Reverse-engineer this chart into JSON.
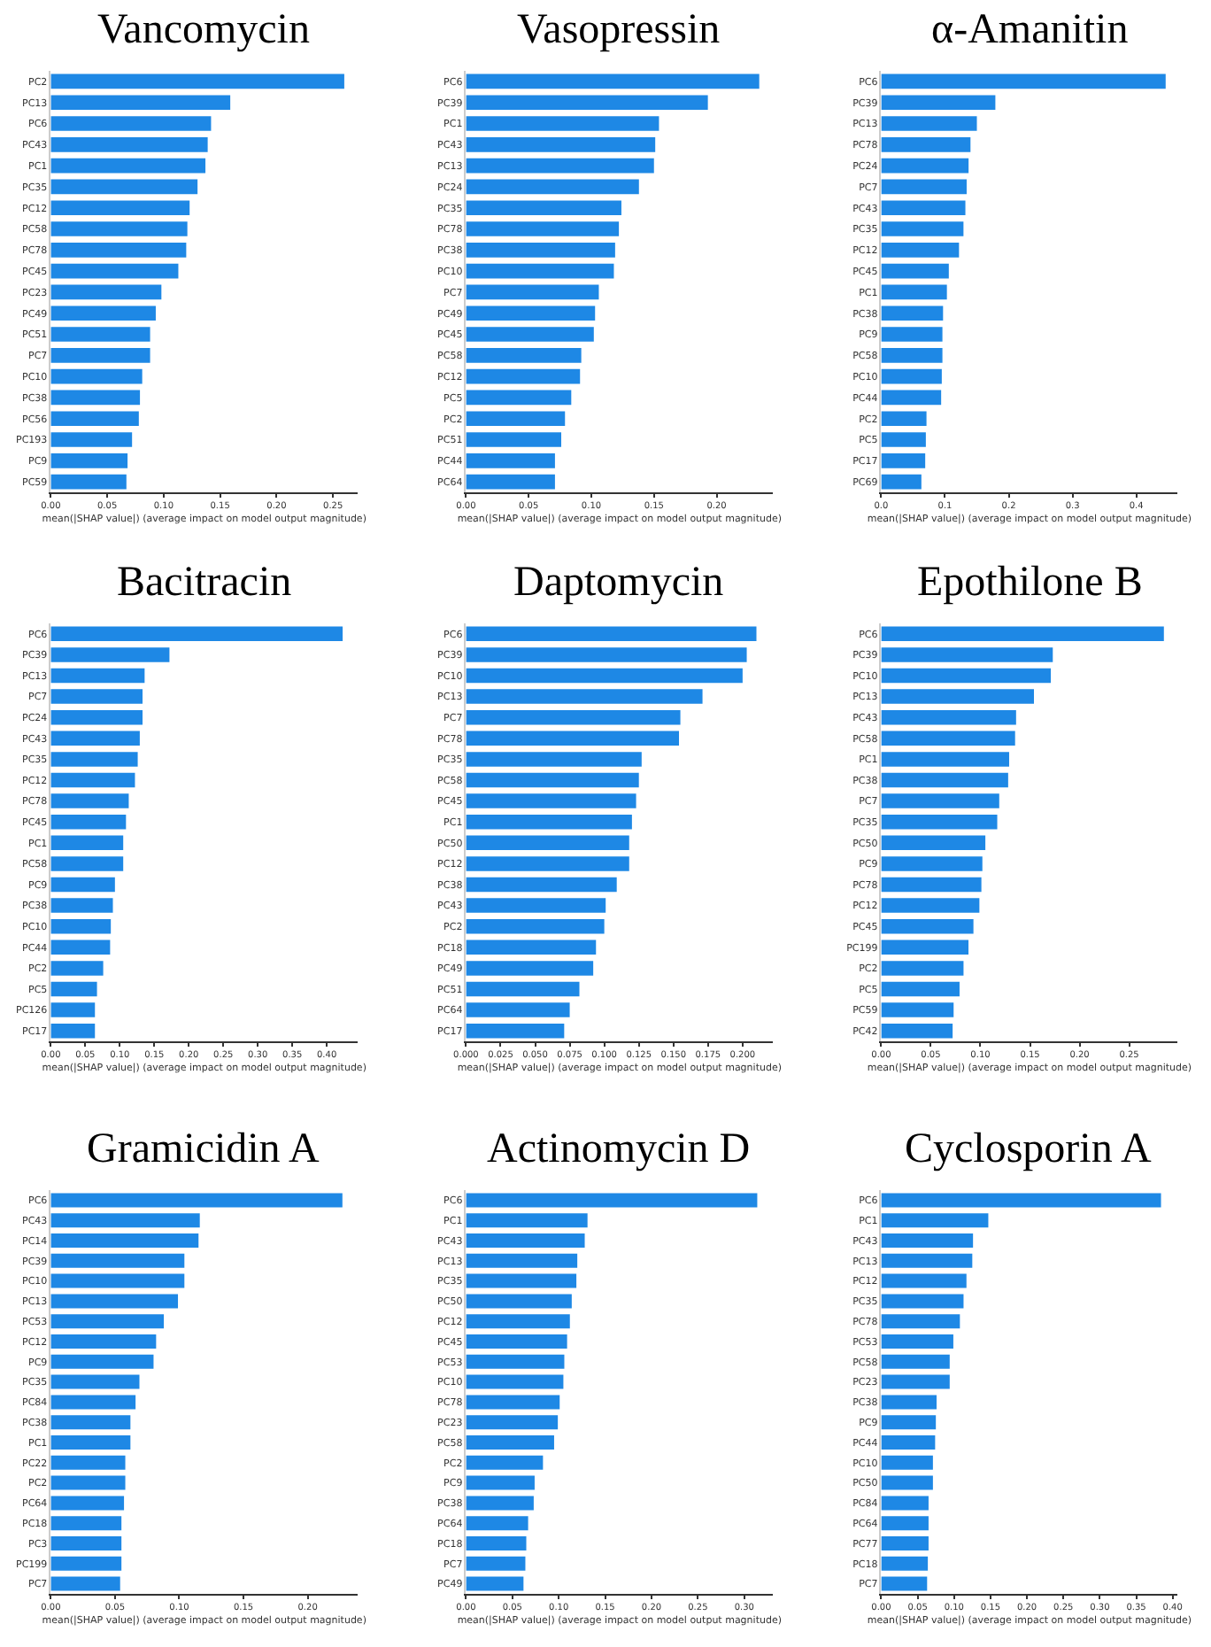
{
  "chart_data": [
    {
      "type": "bar",
      "orientation": "horizontal",
      "title": "Vancomycin",
      "xlabel": "mean(|SHAP value|) (average impact on model output magnitude)",
      "color": "#1e88e5",
      "categories": [
        "PC2",
        "PC13",
        "PC6",
        "PC43",
        "PC1",
        "PC35",
        "PC12",
        "PC58",
        "PC78",
        "PC45",
        "PC23",
        "PC49",
        "PC51",
        "PC7",
        "PC10",
        "PC38",
        "PC56",
        "PC193",
        "PC9",
        "PC59"
      ],
      "values": [
        0.26,
        0.159,
        0.142,
        0.139,
        0.137,
        0.13,
        0.123,
        0.121,
        0.12,
        0.113,
        0.098,
        0.093,
        0.088,
        0.088,
        0.081,
        0.079,
        0.078,
        0.072,
        0.068,
        0.067
      ],
      "xlim": [
        0,
        0.272
      ],
      "xticks": [
        {
          "value": 0,
          "label": "0.00"
        },
        {
          "value": 0.05,
          "label": "0.05"
        },
        {
          "value": 0.1,
          "label": "0.10"
        },
        {
          "value": 0.15,
          "label": "0.15"
        },
        {
          "value": 0.2,
          "label": "0.20"
        },
        {
          "value": 0.25,
          "label": "0.25"
        }
      ]
    },
    {
      "type": "bar",
      "orientation": "horizontal",
      "title": "Vasopressin",
      "xlabel": "mean(|SHAP value|) (average impact on model output magnitude)",
      "color": "#1e88e5",
      "categories": [
        "PC6",
        "PC39",
        "PC1",
        "PC43",
        "PC13",
        "PC24",
        "PC35",
        "PC78",
        "PC38",
        "PC10",
        "PC7",
        "PC49",
        "PC45",
        "PC58",
        "PC12",
        "PC5",
        "PC2",
        "PC51",
        "PC44",
        "PC64"
      ],
      "values": [
        0.234,
        0.193,
        0.154,
        0.151,
        0.15,
        0.138,
        0.124,
        0.122,
        0.119,
        0.118,
        0.106,
        0.103,
        0.102,
        0.092,
        0.091,
        0.084,
        0.079,
        0.076,
        0.071,
        0.071
      ],
      "xlim": [
        0,
        0.245
      ],
      "xticks": [
        {
          "value": 0,
          "label": "0.00"
        },
        {
          "value": 0.05,
          "label": "0.05"
        },
        {
          "value": 0.1,
          "label": "0.10"
        },
        {
          "value": 0.15,
          "label": "0.15"
        },
        {
          "value": 0.2,
          "label": "0.20"
        }
      ]
    },
    {
      "type": "bar",
      "orientation": "horizontal",
      "title": "α-Amanitin",
      "xlabel": "mean(|SHAP value|) (average impact on model output magnitude)",
      "color": "#1e88e5",
      "categories": [
        "PC6",
        "PC39",
        "PC13",
        "PC78",
        "PC24",
        "PC7",
        "PC43",
        "PC35",
        "PC12",
        "PC45",
        "PC1",
        "PC38",
        "PC9",
        "PC58",
        "PC10",
        "PC44",
        "PC2",
        "PC5",
        "PC17",
        "PC69"
      ],
      "values": [
        0.446,
        0.179,
        0.15,
        0.14,
        0.137,
        0.134,
        0.132,
        0.129,
        0.122,
        0.106,
        0.103,
        0.097,
        0.096,
        0.096,
        0.095,
        0.094,
        0.071,
        0.07,
        0.069,
        0.063
      ],
      "xlim": [
        0,
        0.465
      ],
      "xticks": [
        {
          "value": 0,
          "label": "0.0"
        },
        {
          "value": 0.1,
          "label": "0.1"
        },
        {
          "value": 0.2,
          "label": "0.2"
        },
        {
          "value": 0.3,
          "label": "0.3"
        },
        {
          "value": 0.4,
          "label": "0.4"
        }
      ]
    },
    {
      "type": "bar",
      "orientation": "horizontal",
      "title": "Bacitracin",
      "xlabel": "mean(|SHAP value|) (average impact on model output magnitude)",
      "color": "#1e88e5",
      "categories": [
        "PC6",
        "PC39",
        "PC13",
        "PC7",
        "PC24",
        "PC43",
        "PC35",
        "PC12",
        "PC78",
        "PC45",
        "PC1",
        "PC58",
        "PC9",
        "PC38",
        "PC10",
        "PC44",
        "PC2",
        "PC5",
        "PC126",
        "PC17"
      ],
      "values": [
        0.423,
        0.172,
        0.136,
        0.133,
        0.133,
        0.129,
        0.126,
        0.122,
        0.113,
        0.109,
        0.105,
        0.105,
        0.093,
        0.09,
        0.087,
        0.086,
        0.076,
        0.067,
        0.064,
        0.064
      ],
      "xlim": [
        0,
        0.445
      ],
      "xticks": [
        {
          "value": 0,
          "label": "0.00"
        },
        {
          "value": 0.05,
          "label": "0.05"
        },
        {
          "value": 0.1,
          "label": "0.10"
        },
        {
          "value": 0.15,
          "label": "0.15"
        },
        {
          "value": 0.2,
          "label": "0.20"
        },
        {
          "value": 0.25,
          "label": "0.25"
        },
        {
          "value": 0.3,
          "label": "0.30"
        },
        {
          "value": 0.35,
          "label": "0.35"
        },
        {
          "value": 0.4,
          "label": "0.40"
        }
      ]
    },
    {
      "type": "bar",
      "orientation": "horizontal",
      "title": "Daptomycin",
      "xlabel": "mean(|SHAP value|) (average impact on model output magnitude)",
      "color": "#1e88e5",
      "categories": [
        "PC6",
        "PC39",
        "PC10",
        "PC13",
        "PC7",
        "PC78",
        "PC35",
        "PC58",
        "PC45",
        "PC1",
        "PC50",
        "PC12",
        "PC38",
        "PC43",
        "PC2",
        "PC18",
        "PC49",
        "PC51",
        "PC64",
        "PC17"
      ],
      "values": [
        0.21,
        0.203,
        0.2,
        0.171,
        0.155,
        0.154,
        0.127,
        0.125,
        0.123,
        0.12,
        0.118,
        0.118,
        0.109,
        0.101,
        0.1,
        0.094,
        0.092,
        0.082,
        0.075,
        0.071
      ],
      "xlim": [
        0,
        0.222
      ],
      "xticks": [
        {
          "value": 0,
          "label": "0.000"
        },
        {
          "value": 0.025,
          "label": "0.025"
        },
        {
          "value": 0.05,
          "label": "0.050"
        },
        {
          "value": 0.075,
          "label": "0.075"
        },
        {
          "value": 0.1,
          "label": "0.100"
        },
        {
          "value": 0.125,
          "label": "0.125"
        },
        {
          "value": 0.15,
          "label": "0.150"
        },
        {
          "value": 0.175,
          "label": "0.175"
        },
        {
          "value": 0.2,
          "label": "0.200"
        }
      ]
    },
    {
      "type": "bar",
      "orientation": "horizontal",
      "title": "Epothilone B",
      "xlabel": "mean(|SHAP value|) (average impact on model output magnitude)",
      "color": "#1e88e5",
      "categories": [
        "PC6",
        "PC39",
        "PC10",
        "PC13",
        "PC43",
        "PC58",
        "PC1",
        "PC38",
        "PC7",
        "PC35",
        "PC50",
        "PC9",
        "PC78",
        "PC12",
        "PC45",
        "PC199",
        "PC2",
        "PC5",
        "PC59",
        "PC42"
      ],
      "values": [
        0.285,
        0.173,
        0.171,
        0.154,
        0.136,
        0.135,
        0.129,
        0.128,
        0.119,
        0.117,
        0.105,
        0.102,
        0.101,
        0.099,
        0.093,
        0.088,
        0.083,
        0.079,
        0.073,
        0.072
      ],
      "xlim": [
        0,
        0.299
      ],
      "xticks": [
        {
          "value": 0,
          "label": "0.00"
        },
        {
          "value": 0.05,
          "label": "0.05"
        },
        {
          "value": 0.1,
          "label": "0.10"
        },
        {
          "value": 0.15,
          "label": "0.15"
        },
        {
          "value": 0.2,
          "label": "0.20"
        },
        {
          "value": 0.25,
          "label": "0.25"
        }
      ]
    },
    {
      "type": "bar",
      "orientation": "horizontal",
      "title": "Gramicidin A",
      "xlabel": "mean(|SHAP value|) (average impact on model output magnitude)",
      "color": "#1e88e5",
      "categories": [
        "PC6",
        "PC43",
        "PC14",
        "PC39",
        "PC10",
        "PC13",
        "PC53",
        "PC12",
        "PC9",
        "PC35",
        "PC84",
        "PC38",
        "PC1",
        "PC22",
        "PC2",
        "PC64",
        "PC18",
        "PC3",
        "PC199",
        "PC7"
      ],
      "values": [
        0.227,
        0.116,
        0.115,
        0.104,
        0.104,
        0.099,
        0.088,
        0.082,
        0.08,
        0.069,
        0.066,
        0.062,
        0.062,
        0.058,
        0.058,
        0.057,
        0.055,
        0.055,
        0.055,
        0.054
      ],
      "xlim": [
        0,
        0.239
      ],
      "xticks": [
        {
          "value": 0,
          "label": "0.00"
        },
        {
          "value": 0.05,
          "label": "0.05"
        },
        {
          "value": 0.1,
          "label": "0.10"
        },
        {
          "value": 0.15,
          "label": "0.15"
        },
        {
          "value": 0.2,
          "label": "0.20"
        }
      ]
    },
    {
      "type": "bar",
      "orientation": "horizontal",
      "title": "Actinomycin D",
      "xlabel": "mean(|SHAP value|) (average impact on model output magnitude)",
      "color": "#1e88e5",
      "categories": [
        "PC6",
        "PC1",
        "PC43",
        "PC13",
        "PC35",
        "PC50",
        "PC12",
        "PC45",
        "PC53",
        "PC10",
        "PC78",
        "PC23",
        "PC58",
        "PC2",
        "PC9",
        "PC38",
        "PC64",
        "PC18",
        "PC7",
        "PC49"
      ],
      "values": [
        0.314,
        0.131,
        0.128,
        0.12,
        0.119,
        0.114,
        0.112,
        0.109,
        0.106,
        0.105,
        0.101,
        0.099,
        0.095,
        0.083,
        0.074,
        0.073,
        0.067,
        0.065,
        0.064,
        0.062
      ],
      "xlim": [
        0,
        0.331
      ],
      "xticks": [
        {
          "value": 0,
          "label": "0.00"
        },
        {
          "value": 0.05,
          "label": "0.05"
        },
        {
          "value": 0.1,
          "label": "0.10"
        },
        {
          "value": 0.15,
          "label": "0.15"
        },
        {
          "value": 0.2,
          "label": "0.20"
        },
        {
          "value": 0.25,
          "label": "0.25"
        },
        {
          "value": 0.3,
          "label": "0.30"
        }
      ]
    },
    {
      "type": "bar",
      "orientation": "horizontal",
      "title": "Cyclosporin A",
      "xlabel": "mean(|SHAP value|) (average impact on model output magnitude)",
      "color": "#1e88e5",
      "categories": [
        "PC6",
        "PC1",
        "PC43",
        "PC13",
        "PC12",
        "PC35",
        "PC78",
        "PC53",
        "PC58",
        "PC23",
        "PC38",
        "PC9",
        "PC44",
        "PC10",
        "PC50",
        "PC84",
        "PC64",
        "PC77",
        "PC18",
        "PC7"
      ],
      "values": [
        0.384,
        0.147,
        0.126,
        0.125,
        0.117,
        0.113,
        0.108,
        0.099,
        0.094,
        0.094,
        0.076,
        0.075,
        0.074,
        0.071,
        0.071,
        0.065,
        0.065,
        0.065,
        0.064,
        0.063
      ],
      "xlim": [
        0,
        0.407
      ],
      "xticks": [
        {
          "value": 0,
          "label": "0.00"
        },
        {
          "value": 0.05,
          "label": "0.05"
        },
        {
          "value": 0.1,
          "label": "0.10"
        },
        {
          "value": 0.15,
          "label": "0.15"
        },
        {
          "value": 0.2,
          "label": "0.20"
        },
        {
          "value": 0.25,
          "label": "0.25"
        },
        {
          "value": 0.3,
          "label": "0.30"
        },
        {
          "value": 0.35,
          "label": "0.35"
        },
        {
          "value": 0.4,
          "label": "0.40"
        }
      ]
    }
  ]
}
